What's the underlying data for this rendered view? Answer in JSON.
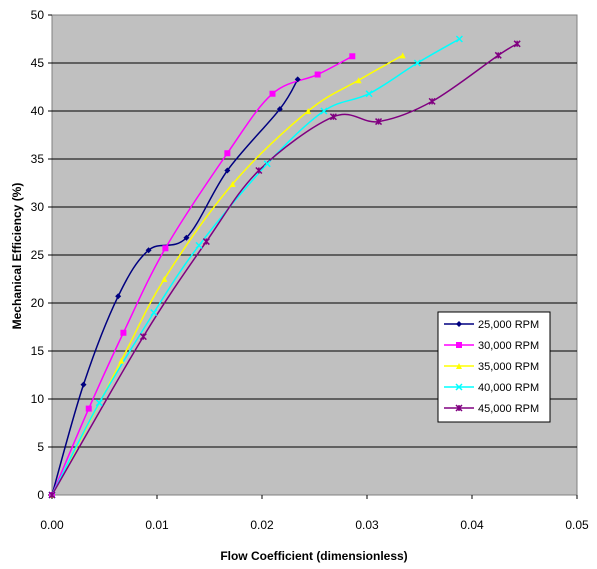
{
  "chart_data": {
    "type": "line",
    "xlabel": "Flow Coefficient (dimensionless)",
    "ylabel": "Mechanical Efficiency (%)",
    "xlim": [
      0,
      0.05
    ],
    "ylim": [
      0,
      50
    ],
    "x_ticks": [
      "0.00",
      "0.01",
      "0.02",
      "0.03",
      "0.04",
      "0.05"
    ],
    "y_ticks": [
      "0",
      "5",
      "10",
      "15",
      "20",
      "25",
      "30",
      "35",
      "40",
      "45",
      "50"
    ],
    "grid": "horizontal",
    "legend_position": "bottom-right",
    "plot_background": "#c0c0c0",
    "series": [
      {
        "name": "25,000 RPM",
        "color": "#000080",
        "marker": "diamond",
        "x": [
          0,
          0.003,
          0.0063,
          0.0092,
          0.0128,
          0.0167,
          0.0217,
          0.0234
        ],
        "y": [
          0,
          11.5,
          20.7,
          25.5,
          26.8,
          33.8,
          40.2,
          43.3
        ]
      },
      {
        "name": "30,000 RPM",
        "color": "#ff00ff",
        "marker": "square",
        "x": [
          0,
          0.0035,
          0.0068,
          0.0108,
          0.0167,
          0.021,
          0.0253,
          0.0286
        ],
        "y": [
          0,
          9.0,
          16.9,
          25.7,
          35.6,
          41.8,
          43.8,
          45.7
        ]
      },
      {
        "name": "35,000 RPM",
        "color": "#ffff00",
        "marker": "triangle",
        "x": [
          0,
          0.0066,
          0.0107,
          0.0172,
          0.0244,
          0.0292,
          0.0334
        ],
        "y": [
          0,
          14.0,
          22.5,
          32.4,
          40.0,
          43.2,
          45.8
        ]
      },
      {
        "name": "40,000 RPM",
        "color": "#00ffff",
        "marker": "x",
        "x": [
          0,
          0.0045,
          0.0097,
          0.014,
          0.0205,
          0.0259,
          0.0302,
          0.0348,
          0.0388
        ],
        "y": [
          0,
          9.6,
          19.0,
          26.0,
          34.5,
          40.0,
          41.8,
          45.0,
          47.5
        ]
      },
      {
        "name": "45,000 RPM",
        "color": "#800080",
        "marker": "star",
        "x": [
          0,
          0.0087,
          0.0147,
          0.0197,
          0.0268,
          0.0311,
          0.0362,
          0.0425,
          0.0443
        ],
        "y": [
          0,
          16.5,
          26.4,
          33.8,
          39.4,
          38.9,
          41.0,
          45.8,
          47.0
        ]
      }
    ]
  }
}
